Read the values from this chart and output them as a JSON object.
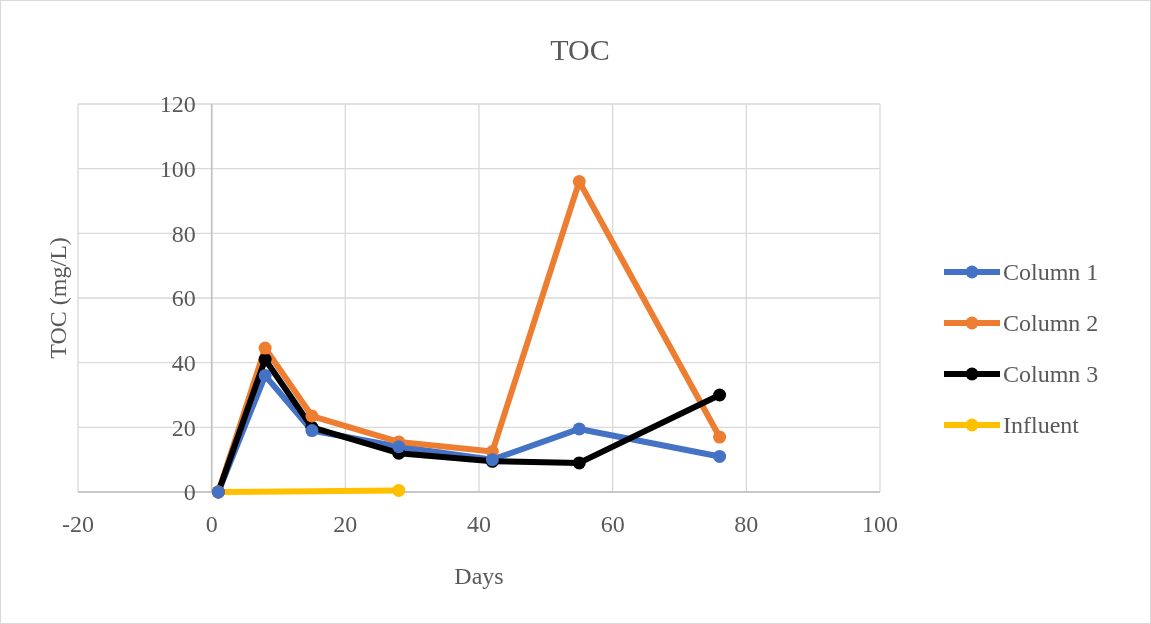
{
  "chart_data": {
    "type": "line",
    "title": "TOC",
    "xlabel": "Days",
    "ylabel": "TOC (mg/L)",
    "xlim": [
      -20,
      100
    ],
    "xticks": [
      -20,
      0,
      20,
      40,
      60,
      80,
      100
    ],
    "ylim": [
      0,
      120
    ],
    "yticks": [
      0,
      20,
      40,
      60,
      80,
      100,
      120
    ],
    "grid": true,
    "legend": "right",
    "marker": "circle",
    "line_style": "solid",
    "series": [
      {
        "name": "Column 1",
        "color": "#4472c4",
        "x": [
          1,
          8,
          15,
          28,
          42,
          55,
          76
        ],
        "values": [
          0,
          36,
          19,
          14,
          10,
          19.5,
          11
        ]
      },
      {
        "name": "Column 2",
        "color": "#ed7d31",
        "x": [
          1,
          8,
          15,
          28,
          42,
          55,
          76
        ],
        "values": [
          0,
          44.5,
          23.5,
          15.5,
          12.5,
          96,
          17
        ]
      },
      {
        "name": "Column 3",
        "color": "#000000",
        "x": [
          1,
          8,
          15,
          28,
          42,
          55,
          76
        ],
        "values": [
          0,
          41,
          20,
          12,
          9.5,
          9,
          30
        ]
      },
      {
        "name": "Influent",
        "color": "#ffc000",
        "x": [
          1,
          28
        ],
        "values": [
          0,
          0.5
        ]
      }
    ]
  }
}
